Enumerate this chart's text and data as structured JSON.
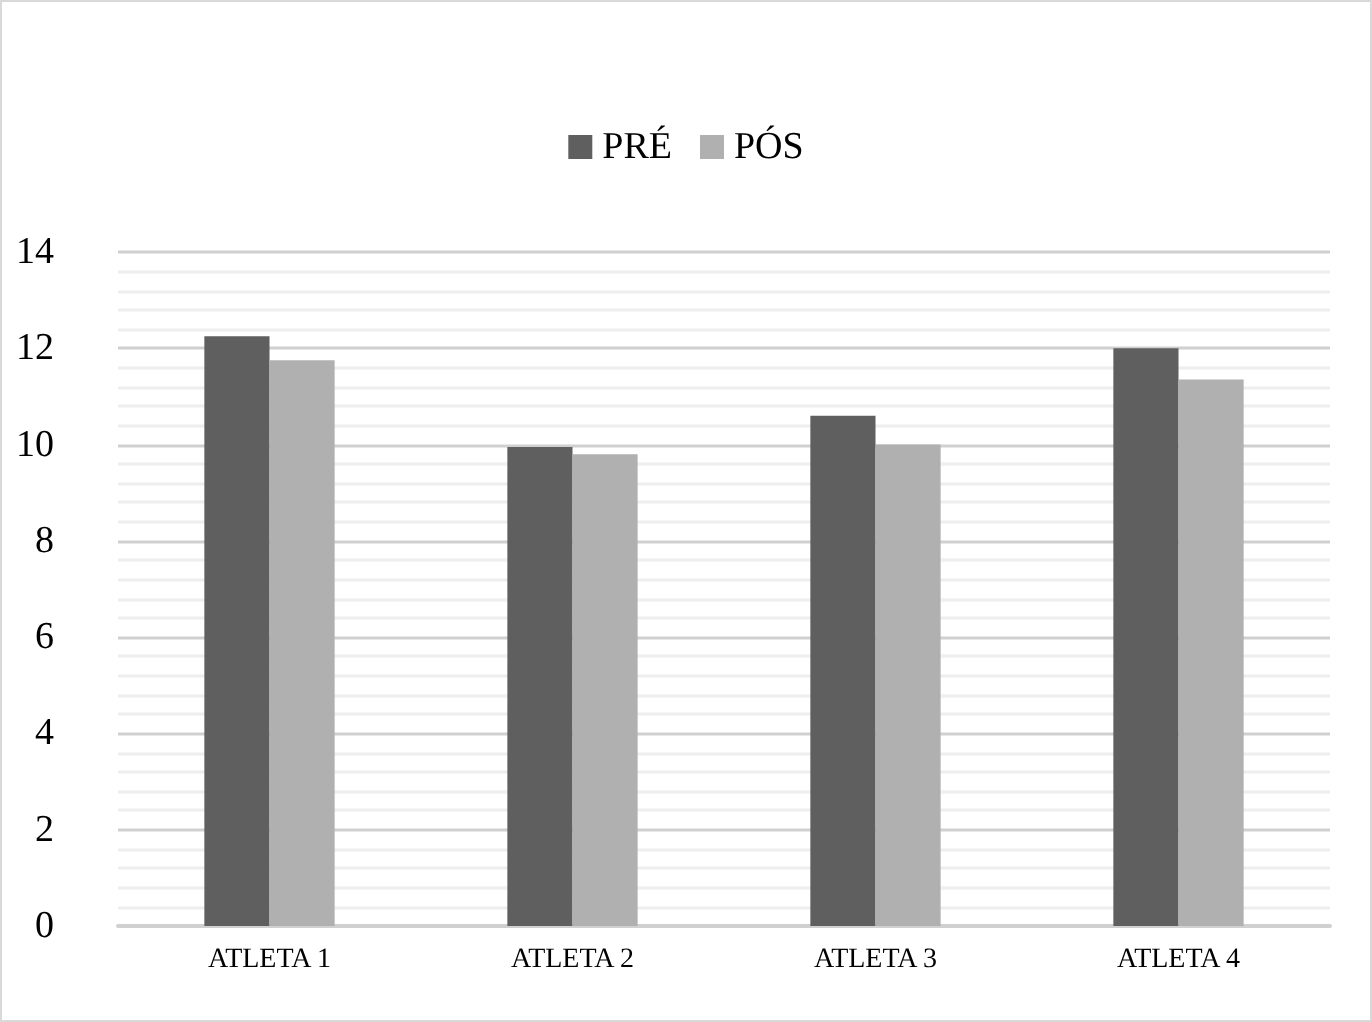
{
  "chart_data": {
    "type": "bar",
    "categories": [
      "ATLETA 1",
      "ATLETA 2",
      "ATLETA 3",
      "ATLETA 4"
    ],
    "series": [
      {
        "name": "PRÉ",
        "color": "#5f5f5f",
        "values": [
          12.25,
          9.95,
          10.6,
          12.0
        ]
      },
      {
        "name": "PÓS",
        "color": "#b0b0b0",
        "values": [
          11.75,
          9.8,
          10.0,
          11.35
        ]
      }
    ],
    "ylim": [
      0,
      14
    ],
    "yticks": [
      0,
      {
        "value": 0.4,
        "label": null
      },
      {
        "value": 0.8,
        "label": null
      },
      {
        "value": 1.2,
        "label": null
      },
      {
        "value": 1.6,
        "label": null
      },
      2,
      {
        "value": 2.4,
        "label": null
      },
      {
        "value": 2.8,
        "label": null
      },
      {
        "value": 3.2,
        "label": null
      },
      {
        "value": 3.6,
        "label": null
      },
      4,
      {
        "value": 4.4,
        "label": null
      },
      {
        "value": 4.8,
        "label": null
      },
      {
        "value": 5.2,
        "label": null
      },
      {
        "value": 5.6,
        "label": null
      },
      6,
      {
        "value": 6.4,
        "label": null
      },
      {
        "value": 6.8,
        "label": null
      },
      {
        "value": 7.2,
        "label": null
      },
      {
        "value": 7.6,
        "label": null
      },
      8,
      {
        "value": 8.4,
        "label": null
      },
      {
        "value": 8.8,
        "label": null
      },
      {
        "value": 9.2,
        "label": null
      },
      {
        "value": 9.6,
        "label": null
      },
      10,
      {
        "value": 10.4,
        "label": null
      },
      {
        "value": 10.8,
        "label": null
      },
      {
        "value": 11.2,
        "label": null
      },
      {
        "value": 11.6,
        "label": null
      },
      12,
      {
        "value": 12.4,
        "label": null
      },
      {
        "value": 12.8,
        "label": null
      },
      {
        "value": 13.2,
        "label": null
      },
      {
        "value": 13.6,
        "label": null
      },
      14
    ],
    "grid": "y",
    "legend": "top"
  }
}
